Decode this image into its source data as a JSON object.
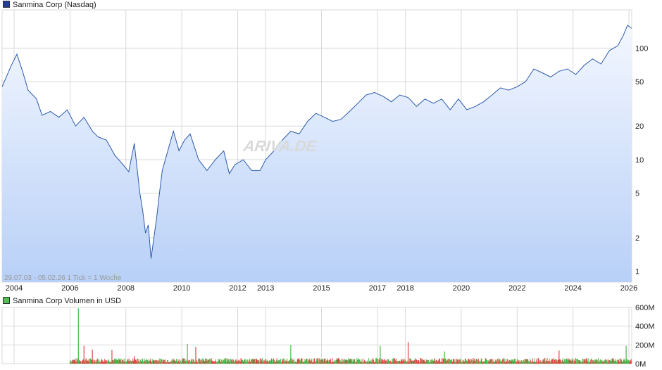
{
  "colors": {
    "line": "#2b5aad",
    "area_top": "#f3f7ff",
    "area_bottom": "#b8d0f7",
    "grid": "#d8d8d8",
    "vol_up": "#44bb44",
    "vol_down": "#dd4444",
    "main_swatch": "#1f3f99",
    "vol_swatch": "#55bb55"
  },
  "watermark": "ARIVA.DE",
  "chart_data": [
    {
      "type": "line",
      "title": "Sanmina Corp (Nasdaq)",
      "y_scale": "log",
      "ylim": [
        0.8,
        220
      ],
      "y_ticks": [
        1,
        2,
        5,
        10,
        20,
        50,
        100
      ],
      "xlim": [
        2003.57,
        2026.1
      ],
      "x_ticks": [
        "2004",
        "2006",
        "2008",
        "2010",
        "2012",
        "2013",
        "2015",
        "2017",
        "2018",
        "2020",
        "2022",
        "2024",
        "2026"
      ],
      "x_tick_positions": [
        2004,
        2006,
        2008,
        2010,
        2012,
        2013,
        2015,
        2017,
        2018,
        2020,
        2022,
        2024,
        2026
      ],
      "grid": true,
      "footer": "29.07.03 - 05.02.26    1 Tick = 1 Woche",
      "x": [
        2003.57,
        2003.9,
        2004.1,
        2004.3,
        2004.5,
        2004.8,
        2005.0,
        2005.3,
        2005.6,
        2005.9,
        2006.2,
        2006.5,
        2006.8,
        2007.0,
        2007.3,
        2007.6,
        2007.9,
        2008.1,
        2008.3,
        2008.5,
        2008.6,
        2008.7,
        2008.8,
        2008.9,
        2009.0,
        2009.1,
        2009.2,
        2009.3,
        2009.5,
        2009.7,
        2009.9,
        2010.1,
        2010.3,
        2010.6,
        2010.9,
        2011.2,
        2011.5,
        2011.7,
        2011.9,
        2012.2,
        2012.5,
        2012.8,
        2013.0,
        2013.3,
        2013.6,
        2013.9,
        2014.2,
        2014.5,
        2014.8,
        2015.1,
        2015.4,
        2015.7,
        2016.0,
        2016.3,
        2016.6,
        2016.9,
        2017.2,
        2017.5,
        2017.8,
        2018.1,
        2018.4,
        2018.7,
        2019.0,
        2019.3,
        2019.6,
        2019.9,
        2020.2,
        2020.5,
        2020.8,
        2021.1,
        2021.4,
        2021.7,
        2022.0,
        2022.3,
        2022.6,
        2022.9,
        2023.2,
        2023.5,
        2023.8,
        2024.1,
        2024.4,
        2024.7,
        2025.0,
        2025.3,
        2025.6,
        2025.8,
        2025.95,
        2026.1
      ],
      "y": [
        45,
        70,
        88,
        62,
        42,
        35,
        25,
        27,
        24,
        28,
        20,
        24,
        18,
        16,
        15,
        11,
        9,
        7.8,
        14,
        5,
        3.5,
        2.2,
        2.6,
        1.3,
        2.0,
        3.0,
        5.0,
        8.0,
        12,
        18,
        12,
        15,
        17,
        10,
        8,
        10,
        12,
        7.5,
        9,
        10,
        8,
        8,
        10,
        12,
        15,
        18,
        17,
        22,
        26,
        24,
        22,
        23,
        27,
        32,
        38,
        40,
        37,
        33,
        38,
        36,
        30,
        35,
        32,
        35,
        28,
        35,
        28,
        30,
        33,
        38,
        44,
        42,
        45,
        50,
        65,
        60,
        55,
        62,
        65,
        58,
        70,
        80,
        72,
        95,
        105,
        130,
        160,
        150
      ]
    },
    {
      "type": "bar",
      "title": "Sanmina Corp Volumen in USD",
      "ylim": [
        0,
        600
      ],
      "y_ticks": [
        0,
        200,
        400,
        600
      ],
      "y_tick_labels": [
        "0M",
        "200M",
        "400M",
        "600M"
      ],
      "xlim": [
        2003.57,
        2026.1
      ],
      "grid": true,
      "volume_start": 2006.0,
      "typical_volume_m": 30,
      "spikes": [
        {
          "x": 2006.3,
          "value": 590,
          "up": true
        },
        {
          "x": 2006.5,
          "value": 190,
          "up": false
        },
        {
          "x": 2006.8,
          "value": 150,
          "up": false
        },
        {
          "x": 2007.5,
          "value": 145,
          "up": false
        },
        {
          "x": 2008.3,
          "value": 80,
          "up": false
        },
        {
          "x": 2010.2,
          "value": 210,
          "up": true
        },
        {
          "x": 2010.5,
          "value": 180,
          "up": false
        },
        {
          "x": 2013.9,
          "value": 200,
          "up": true
        },
        {
          "x": 2017.1,
          "value": 190,
          "up": true
        },
        {
          "x": 2018.1,
          "value": 230,
          "up": false
        },
        {
          "x": 2019.4,
          "value": 130,
          "up": true
        },
        {
          "x": 2023.5,
          "value": 140,
          "up": false
        },
        {
          "x": 2025.9,
          "value": 190,
          "up": true
        }
      ]
    }
  ]
}
